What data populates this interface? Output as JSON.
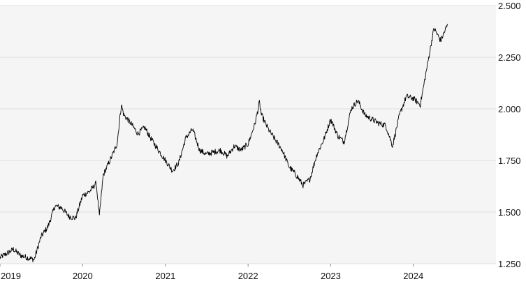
{
  "chart_data": {
    "type": "line",
    "title": "",
    "xlabel": "",
    "ylabel": "",
    "x_tick_labels": [
      "2019",
      "2020",
      "2021",
      "2022",
      "2023",
      "2024"
    ],
    "y_tick_labels": [
      "1.250",
      "1.500",
      "1.750",
      "2.000",
      "2.250",
      "2.500"
    ],
    "y_ticks": [
      1.25,
      1.5,
      1.75,
      2.0,
      2.25,
      2.5
    ],
    "xlim": [
      "2019-01-01",
      "2024-12-31"
    ],
    "ylim": [
      1.25,
      2.5
    ],
    "grid": "horizontal",
    "legend": "none",
    "colors": {
      "line": "#000000",
      "plot_background": "#f5f5f5",
      "grid": "#e0e0e0",
      "page_background": "#ffffff"
    },
    "series": [
      {
        "x": [
          "2019-01-01",
          "2019-02-01",
          "2019-03-01",
          "2019-04-01",
          "2019-05-01",
          "2019-06-01",
          "2019-07-01",
          "2019-08-01",
          "2019-09-01",
          "2019-10-01",
          "2019-11-01",
          "2019-12-01",
          "2020-01-01",
          "2020-02-01",
          "2020-03-01",
          "2020-03-15",
          "2020-04-01",
          "2020-05-01",
          "2020-06-01",
          "2020-06-20",
          "2020-07-01",
          "2020-08-01",
          "2020-09-01",
          "2020-10-01",
          "2020-11-01",
          "2020-12-01",
          "2021-01-01",
          "2021-02-01",
          "2021-03-01",
          "2021-04-01",
          "2021-05-01",
          "2021-06-01",
          "2021-07-01",
          "2021-08-01",
          "2021-09-01",
          "2021-10-01",
          "2021-11-01",
          "2021-12-01",
          "2022-01-01",
          "2022-02-01",
          "2022-02-20",
          "2022-03-01",
          "2022-04-01",
          "2022-05-01",
          "2022-06-01",
          "2022-07-01",
          "2022-08-01",
          "2022-09-01",
          "2022-10-01",
          "2022-11-01",
          "2022-12-01",
          "2023-01-01",
          "2023-02-01",
          "2023-03-01",
          "2023-04-01",
          "2023-05-01",
          "2023-06-01",
          "2023-07-01",
          "2023-08-01",
          "2023-09-01",
          "2023-10-01",
          "2023-11-01",
          "2023-12-01",
          "2024-01-01",
          "2024-02-01",
          "2024-03-01",
          "2024-04-01",
          "2024-05-01",
          "2024-06-01"
        ],
        "values": [
          1.28,
          1.3,
          1.32,
          1.29,
          1.28,
          1.27,
          1.38,
          1.43,
          1.53,
          1.52,
          1.48,
          1.47,
          1.58,
          1.6,
          1.64,
          1.48,
          1.68,
          1.75,
          1.83,
          2.02,
          1.97,
          1.93,
          1.88,
          1.91,
          1.85,
          1.8,
          1.75,
          1.7,
          1.74,
          1.86,
          1.9,
          1.8,
          1.78,
          1.79,
          1.8,
          1.77,
          1.82,
          1.8,
          1.83,
          1.93,
          2.03,
          1.97,
          1.9,
          1.85,
          1.8,
          1.72,
          1.68,
          1.63,
          1.66,
          1.78,
          1.85,
          1.95,
          1.87,
          1.84,
          2.0,
          2.04,
          1.97,
          1.95,
          1.93,
          1.92,
          1.82,
          1.97,
          2.06,
          2.05,
          2.02,
          2.2,
          2.39,
          2.33,
          2.41
        ]
      }
    ]
  }
}
